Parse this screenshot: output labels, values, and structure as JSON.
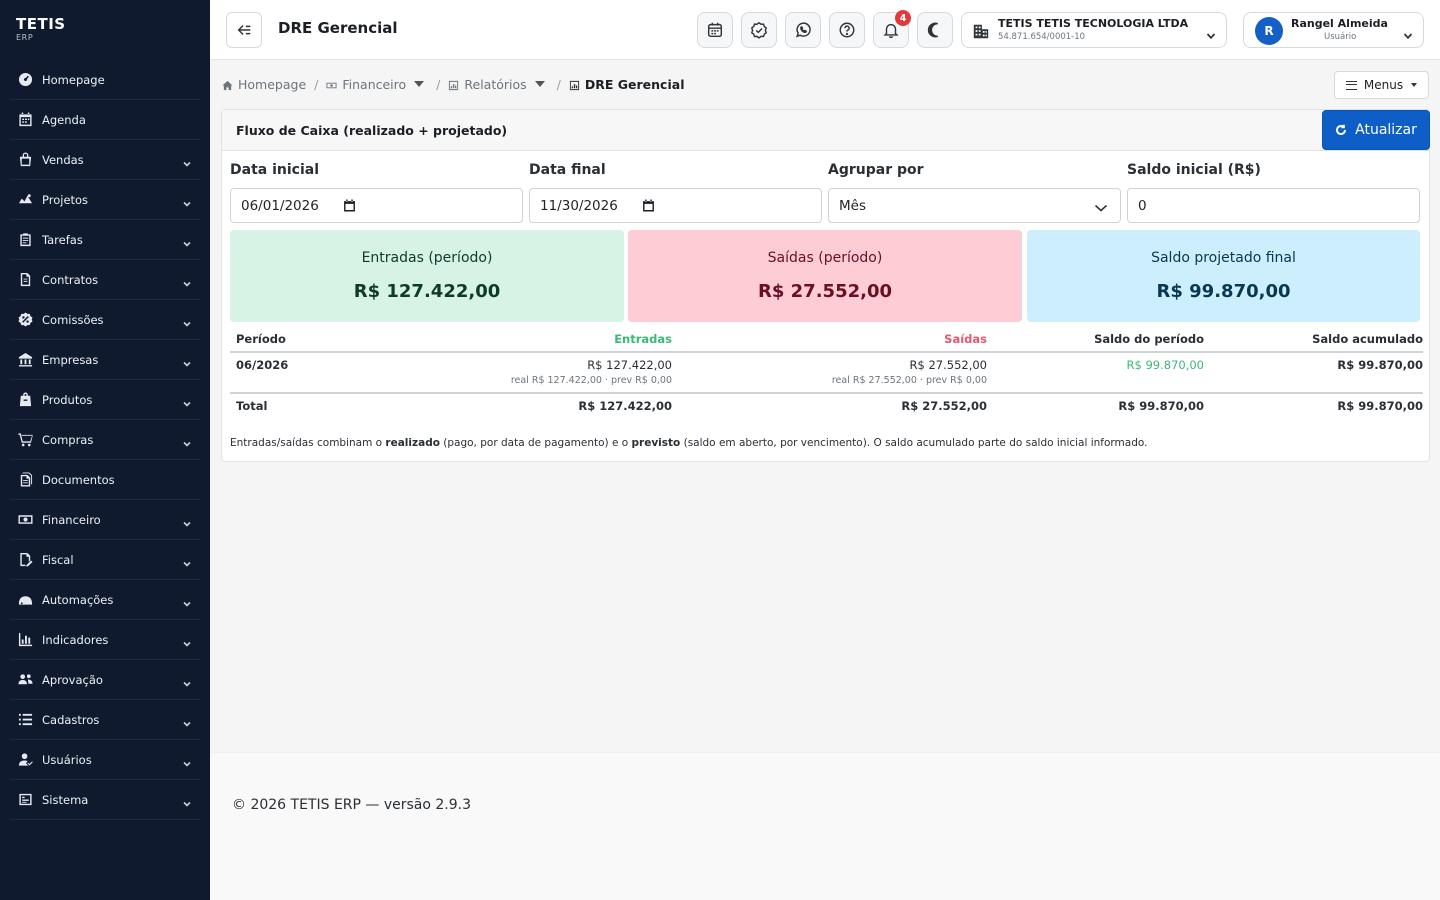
{
  "brand": {
    "name": "TETIS",
    "sub": "ERP"
  },
  "sidebar": {
    "items": [
      {
        "label": "Homepage",
        "icon": "dashboard-icon",
        "chevron": false
      },
      {
        "label": "Agenda",
        "icon": "calendar-icon",
        "chevron": false
      },
      {
        "label": "Vendas",
        "icon": "shopping-bag-icon",
        "chevron": true
      },
      {
        "label": "Projetos",
        "icon": "project-icon",
        "chevron": true
      },
      {
        "label": "Tarefas",
        "icon": "clipboard-icon",
        "chevron": true
      },
      {
        "label": "Contratos",
        "icon": "contract-icon",
        "chevron": true
      },
      {
        "label": "Comissões",
        "icon": "percent-badge-icon",
        "chevron": true
      },
      {
        "label": "Empresas",
        "icon": "building-icon",
        "chevron": true
      },
      {
        "label": "Produtos",
        "icon": "box-icon",
        "chevron": true
      },
      {
        "label": "Compras",
        "icon": "cart-icon",
        "chevron": true
      },
      {
        "label": "Documentos",
        "icon": "documents-icon",
        "chevron": false
      },
      {
        "label": "Financeiro",
        "icon": "money-icon",
        "chevron": true
      },
      {
        "label": "Fiscal",
        "icon": "invoice-icon",
        "chevron": true
      },
      {
        "label": "Automações",
        "icon": "automation-icon",
        "chevron": true
      },
      {
        "label": "Indicadores",
        "icon": "chart-icon",
        "chevron": true
      },
      {
        "label": "Aprovação",
        "icon": "users-check-icon",
        "chevron": true
      },
      {
        "label": "Cadastros",
        "icon": "list-icon",
        "chevron": true
      },
      {
        "label": "Usuários",
        "icon": "user-icon",
        "chevron": true
      },
      {
        "label": "Sistema",
        "icon": "settings-icon",
        "chevron": true
      }
    ]
  },
  "header": {
    "title": "DRE Gerencial",
    "notifications_count": "4",
    "company": {
      "name": "TETIS TETIS TECNOLOGIA LTDA",
      "cnpj": "54.871.654/0001-10"
    },
    "user": {
      "initial": "R",
      "name": "Rangel Almeida",
      "role": "Usuário"
    }
  },
  "breadcrumb": {
    "home": "Homepage",
    "financeiro": "Financeiro",
    "relatorios": "Relatórios",
    "current": "DRE Gerencial",
    "separator": "/"
  },
  "menus_label": "Menus",
  "card": {
    "title": "Fluxo de Caixa (realizado + projetado)",
    "refresh_label": "Atualizar"
  },
  "filters": {
    "start_label": "Data inicial",
    "start_value": "06/01/2026",
    "end_label": "Data final",
    "end_value": "11/30/2026",
    "group_label": "Agrupar por",
    "group_value": "Mês",
    "balance_label": "Saldo inicial (R$)",
    "balance_value": "0"
  },
  "stats": {
    "in_label": "Entradas (período)",
    "in_value": "R$ 127.422,00",
    "out_label": "Saídas (período)",
    "out_value": "R$ 27.552,00",
    "final_label": "Saldo projetado final",
    "final_value": "R$ 99.870,00"
  },
  "table": {
    "headers": {
      "period": "Período",
      "in": "Entradas",
      "out": "Saídas",
      "period_balance": "Saldo do período",
      "cumulative": "Saldo acumulado"
    },
    "row": {
      "period": "06/2026",
      "in": "R$ 127.422,00",
      "in_detail": "real R$ 127.422,00 · prev R$ 0,00",
      "out": "R$ 27.552,00",
      "out_detail": "real R$ 27.552,00 · prev R$ 0,00",
      "period_balance": "R$ 99.870,00",
      "cumulative": "R$ 99.870,00"
    },
    "total": {
      "label": "Total",
      "in": "R$ 127.422,00",
      "out": "R$ 27.552,00",
      "period_balance": "R$ 99.870,00",
      "cumulative": "R$ 99.870,00"
    }
  },
  "note": {
    "p1": "Entradas/saídas combinam o ",
    "b1": "realizado",
    "p2": " (pago, por data de pagamento) e o ",
    "b2": "previsto",
    "p3": " (saldo em aberto, por vencimento). O saldo acumulado parte do saldo inicial informado."
  },
  "footer": {
    "text": "© 2026 TETIS ERP — versão 2.9.3"
  },
  "colors": {
    "sidebar_bg": "#0f1a2e",
    "primary": "#0d5fc7",
    "in_bg": "#d7f3e6",
    "in_fg": "#0e3b28",
    "out_bg": "#fdccd4",
    "out_fg": "#6a0f1f",
    "final_bg": "#cdeefc",
    "final_fg": "#08384f",
    "green_text": "#3cb878",
    "red_text": "#e8576e"
  }
}
